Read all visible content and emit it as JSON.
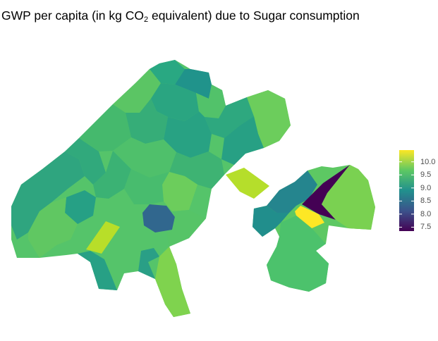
{
  "title": {
    "prefix": "GWP per capita (in kg CO",
    "subscript": "2",
    "suffix": " equivalent) due to Sugar consumption"
  },
  "legend": {
    "ticks": [
      "10.0",
      "9.5",
      "9.0",
      "8.5",
      "8.0",
      "7.5"
    ],
    "tick_values": [
      10.0,
      9.5,
      9.0,
      8.5,
      8.0,
      7.5
    ],
    "range": [
      7.35,
      10.45
    ],
    "palette": [
      "#440154",
      "#3b528b",
      "#21908d",
      "#5dc863",
      "#fde725"
    ]
  },
  "map": {
    "type": "choropleth",
    "variable": "GWP per capita (kg CO2 eq.) due to sugar consumption",
    "colors": {
      "lowest": "#440154",
      "low": "#35608d",
      "mid": "#24a286",
      "high": "#7ad151",
      "highest": "#fde725"
    }
  }
}
